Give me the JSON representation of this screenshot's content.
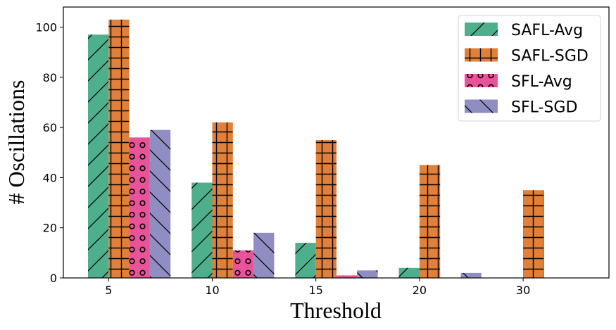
{
  "chart_data": {
    "type": "bar",
    "title": "",
    "xlabel": "Threshold",
    "ylabel": "# Oscillations",
    "categories": [
      "5",
      "10",
      "15",
      "20",
      "30"
    ],
    "ylim": [
      0,
      108
    ],
    "yticks": [
      0,
      20,
      40,
      60,
      80,
      100
    ],
    "grid": false,
    "legend_position": "top-right",
    "series": [
      {
        "name": "SAFL-Avg",
        "color": "#4daf8c",
        "hatch": "diagonal-forward",
        "values": [
          97,
          38,
          14,
          4,
          0
        ]
      },
      {
        "name": "SAFL-SGD",
        "color": "#e0803a",
        "hatch": "grid",
        "values": [
          103,
          62,
          55,
          45,
          35
        ]
      },
      {
        "name": "SFL-Avg",
        "color": "#e8539a",
        "hatch": "circles",
        "values": [
          56,
          11,
          1,
          0,
          0
        ]
      },
      {
        "name": "SFL-SGD",
        "color": "#8f8dc2",
        "hatch": "diagonal-back",
        "values": [
          59,
          18,
          3,
          2,
          0
        ]
      }
    ]
  }
}
